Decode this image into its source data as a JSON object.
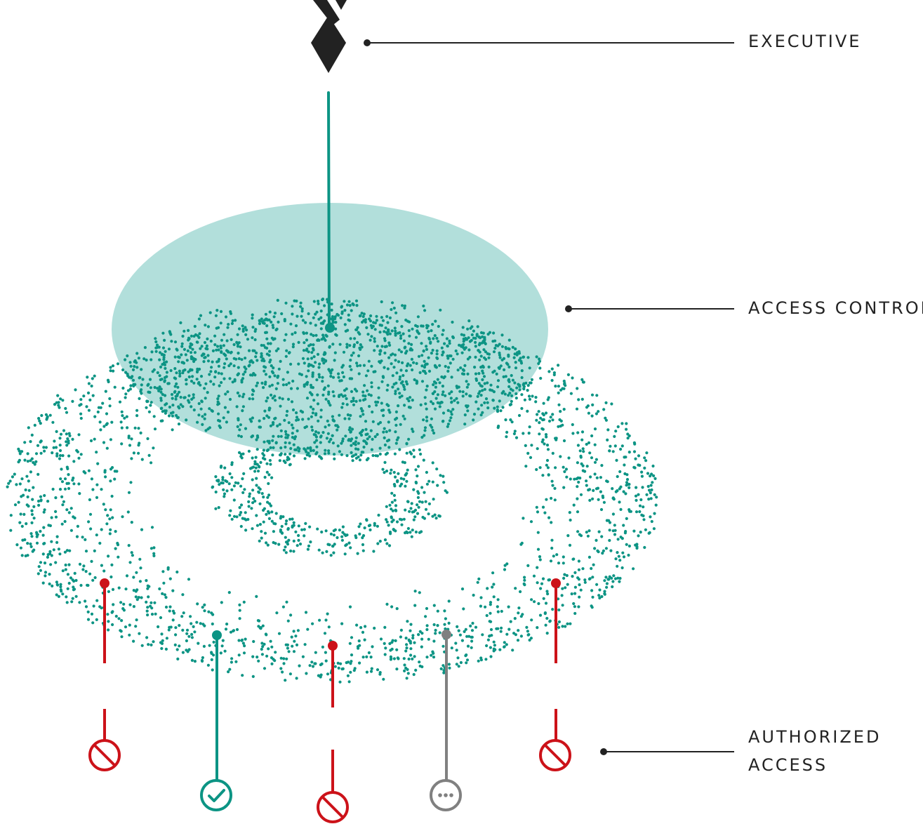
{
  "labels": {
    "executive": "EXECUTIVE",
    "access_control": "ACCESS CONTROL",
    "authorized_access": [
      "AUTHORIZED",
      "ACCESS"
    ]
  },
  "colors": {
    "teal": "#0c9484",
    "teal_disc": "#b2dfdb",
    "red": "#cc1219",
    "gray": "#808080",
    "ink": "#222222"
  },
  "endpoints": [
    {
      "status": "blocked",
      "icon": "blocked-icon"
    },
    {
      "status": "authorized",
      "icon": "check-icon"
    },
    {
      "status": "blocked",
      "icon": "blocked-icon"
    },
    {
      "status": "pending",
      "icon": "ellipsis-icon"
    },
    {
      "status": "blocked",
      "icon": "blocked-icon"
    }
  ]
}
